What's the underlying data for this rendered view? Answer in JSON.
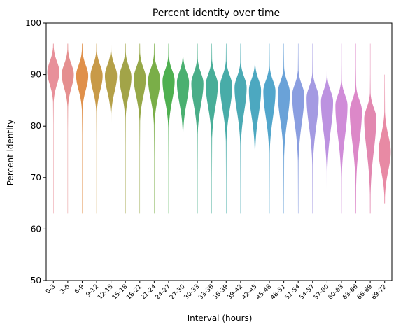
{
  "chart_data": {
    "type": "violin",
    "title": "Percent identity over time",
    "xlabel": "Interval (hours)",
    "ylabel": "Percent identity",
    "ylim": [
      50,
      100
    ],
    "yticks": [
      50,
      60,
      70,
      80,
      90,
      100
    ],
    "grid": false,
    "legend": "none",
    "categories": [
      "0-3",
      "3-6",
      "6-9",
      "9-12",
      "12-15",
      "15-18",
      "18-21",
      "21-24",
      "24-27",
      "27-30",
      "30-33",
      "33-36",
      "36-39",
      "39-42",
      "42-45",
      "45-48",
      "48-51",
      "51-54",
      "54-57",
      "57-60",
      "60-63",
      "63-66",
      "66-69",
      "69-72"
    ],
    "medians": [
      90.5,
      90.0,
      89.8,
      89.8,
      89.8,
      89.5,
      89.3,
      89.0,
      88.8,
      88.5,
      88.3,
      88.0,
      87.8,
      87.5,
      87.0,
      86.8,
      86.5,
      86.0,
      85.5,
      84.8,
      84.0,
      83.0,
      81.5,
      75.0
    ],
    "upper_whisker": [
      96,
      96,
      96,
      96,
      96,
      96,
      96,
      96,
      96,
      96,
      96,
      96,
      96,
      96,
      96,
      96,
      96,
      96,
      96,
      96,
      96,
      96,
      96,
      90
    ],
    "lower_whisker": [
      63,
      63,
      63,
      63,
      63,
      63,
      63,
      63,
      63,
      63,
      63,
      63,
      63,
      63,
      63,
      63,
      63,
      63,
      63,
      63,
      63,
      63,
      63,
      65
    ],
    "colors": [
      "#e8909a",
      "#e58f8f",
      "#e0904a",
      "#c89a48",
      "#b4a048",
      "#a2a448",
      "#96a848",
      "#7aae48",
      "#4eb050",
      "#4ab070",
      "#4aae88",
      "#48ae98",
      "#48aca8",
      "#4aaab4",
      "#4ca8c0",
      "#52a6cc",
      "#6aa2d8",
      "#8a9ee0",
      "#a49ae2",
      "#bc92e0",
      "#d08cd8",
      "#dc88c8",
      "#e288b0",
      "#e88aa4"
    ]
  }
}
